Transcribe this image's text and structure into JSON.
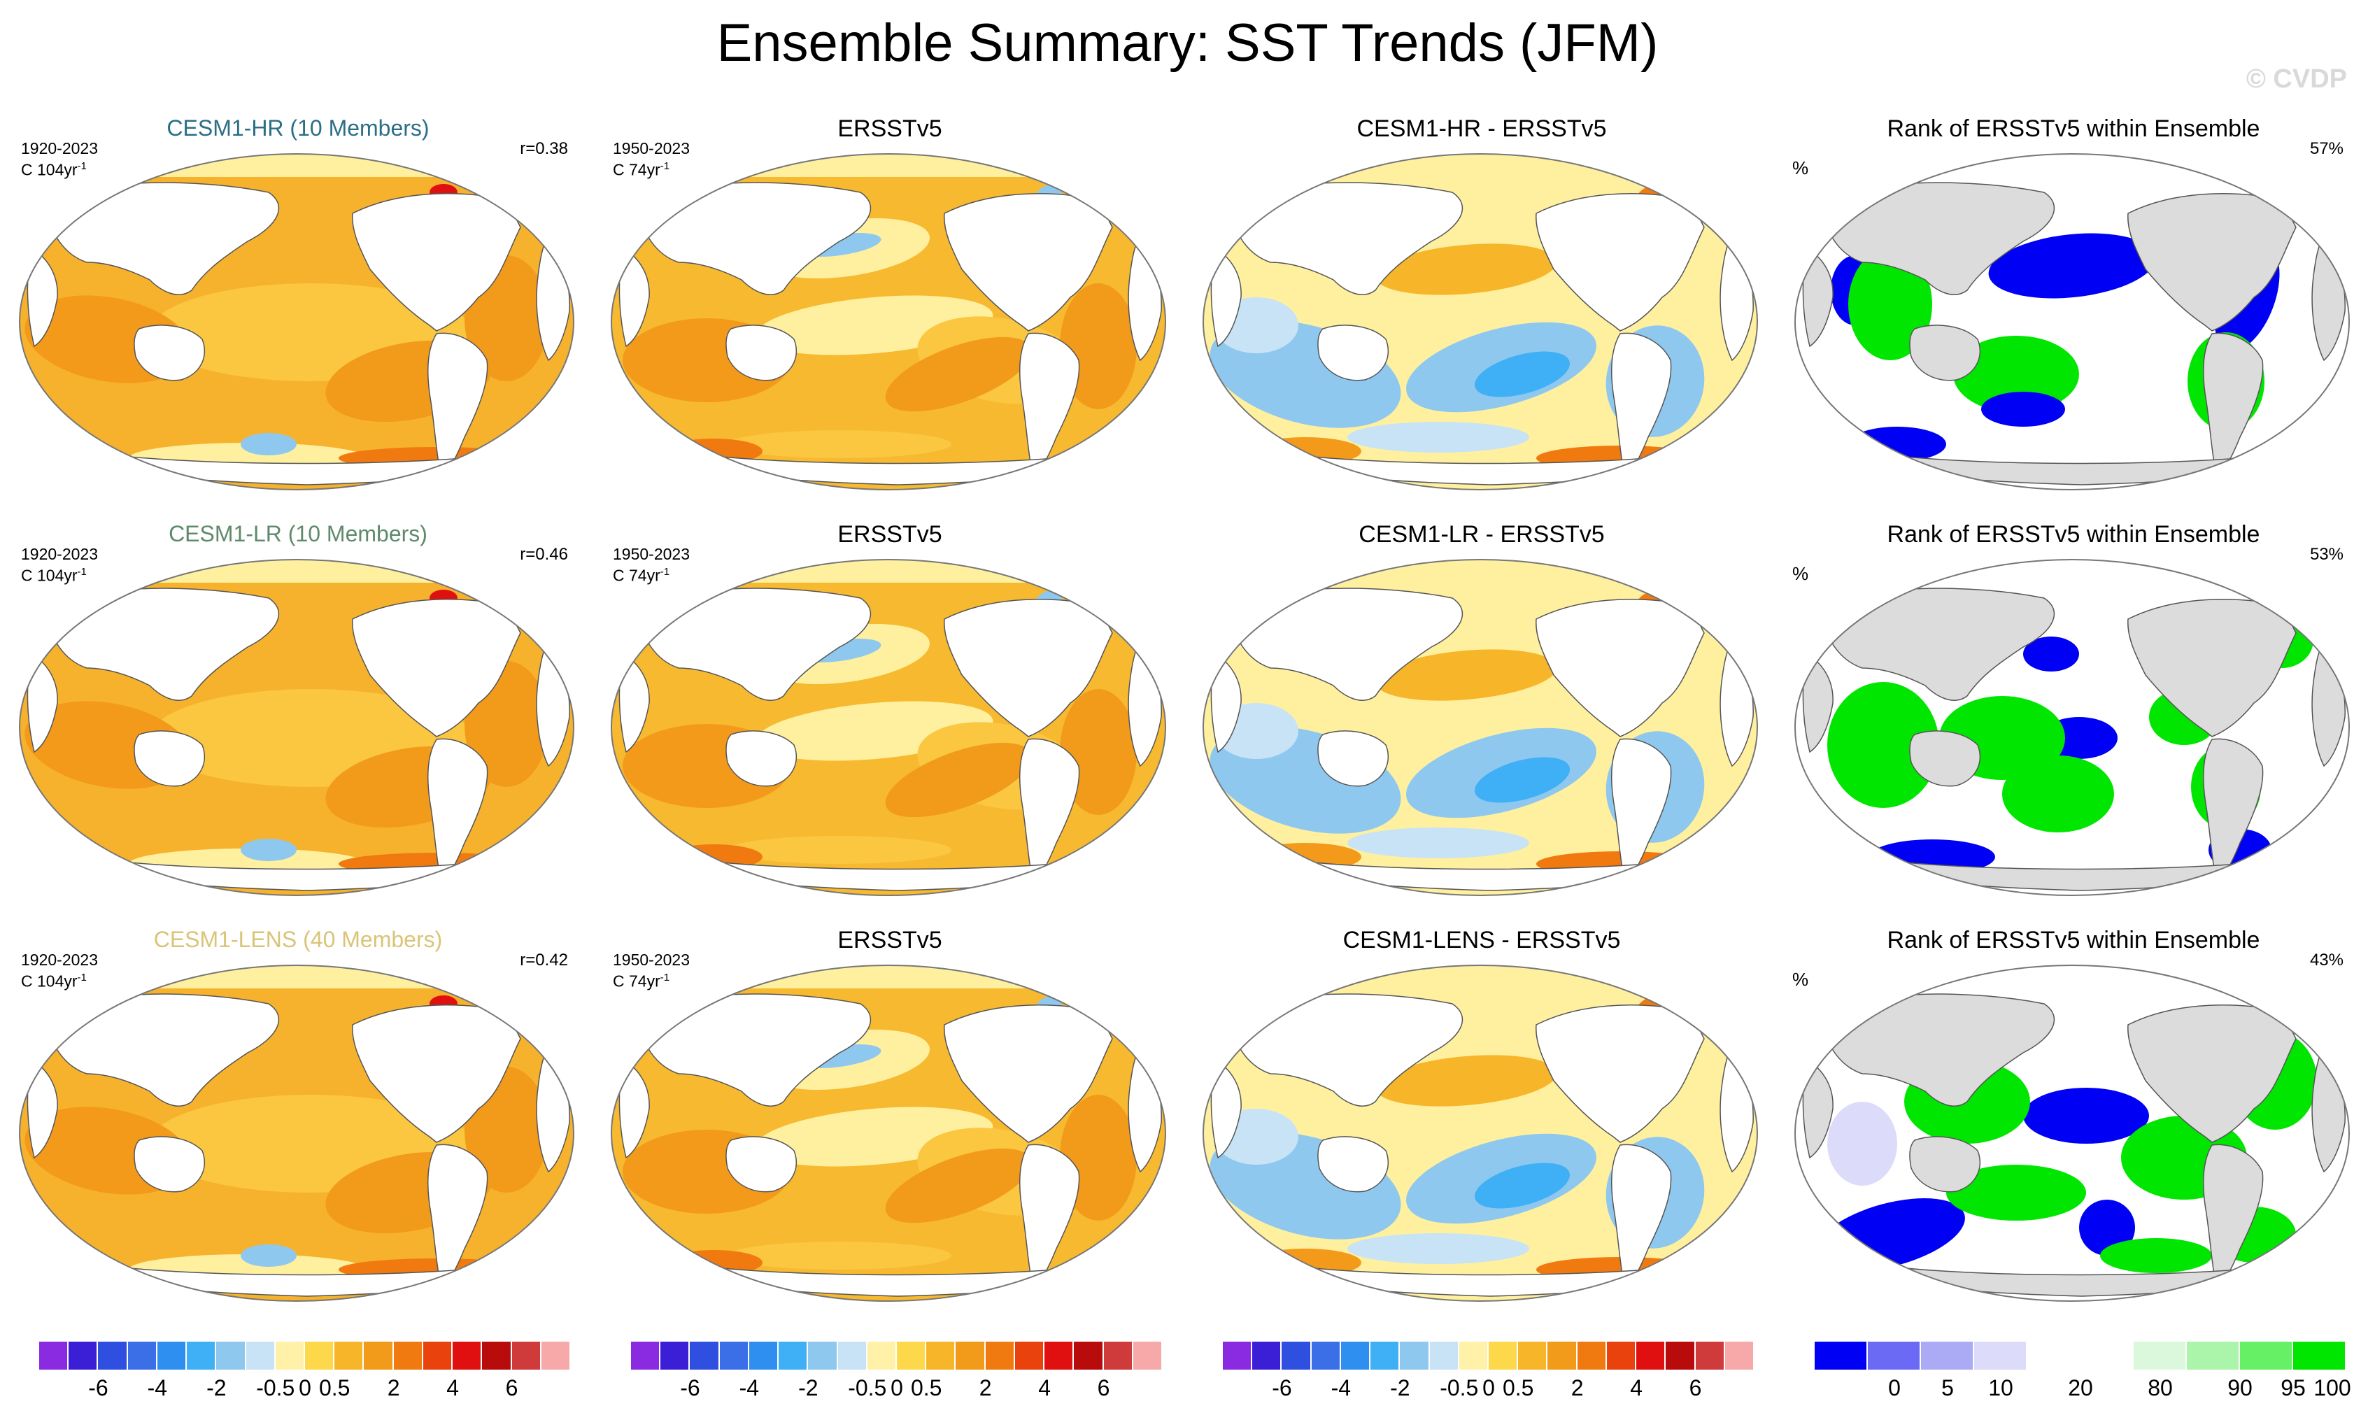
{
  "title": "Ensemble Summary: SST Trends (JFM)",
  "watermark": "© CVDP",
  "colors": {
    "land": "#ffffff",
    "ocean_warm": "#f5b32a",
    "rank_land": "#dcdcdc",
    "model_hr": "#2a6f86",
    "model_lr": "#5e8a6a",
    "model_lens": "#d9c477"
  },
  "rows": [
    {
      "model": {
        "title": "CESM1-HR (10 Members)",
        "period": "1920-2023",
        "units": "C 104yr",
        "sup": "-1",
        "corr": "r=0.38",
        "title_color": "#2a6f86"
      },
      "obs": {
        "title": "ERSSTv5",
        "period": "1950-2023",
        "units": "C 74yr",
        "sup": "-1"
      },
      "diff": {
        "title": "CESM1-HR - ERSSTv5"
      },
      "rank": {
        "title": "Rank of ERSSTv5 within Ensemble",
        "pct_label": "%",
        "value": "57%"
      }
    },
    {
      "model": {
        "title": "CESM1-LR (10 Members)",
        "period": "1920-2023",
        "units": "C 104yr",
        "sup": "-1",
        "corr": "r=0.46",
        "title_color": "#5e8a6a"
      },
      "obs": {
        "title": "ERSSTv5",
        "period": "1950-2023",
        "units": "C 74yr",
        "sup": "-1"
      },
      "diff": {
        "title": "CESM1-LR - ERSSTv5"
      },
      "rank": {
        "title": "Rank of ERSSTv5 within Ensemble",
        "pct_label": "%",
        "value": "53%"
      }
    },
    {
      "model": {
        "title": "CESM1-LENS (40 Members)",
        "period": "1920-2023",
        "units": "C 104yr",
        "sup": "-1",
        "corr": "r=0.42",
        "title_color": "#d9c477"
      },
      "obs": {
        "title": "ERSSTv5",
        "period": "1950-2023",
        "units": "C 74yr",
        "sup": "-1"
      },
      "diff": {
        "title": "CESM1-LENS - ERSSTv5"
      },
      "rank": {
        "title": "Rank of ERSSTv5 within Ensemble",
        "pct_label": "%",
        "value": "43%"
      }
    }
  ],
  "colorbars": {
    "sst": {
      "colors": [
        "#8a2be2",
        "#3a1fd6",
        "#2f4fe0",
        "#3a6fe8",
        "#2f8ff0",
        "#3fb0f5",
        "#8fc8ee",
        "#c7e3f5",
        "#fff2a8",
        "#fdd84a",
        "#f7b52a",
        "#f29a1a",
        "#f07a10",
        "#e9420c",
        "#e01010",
        "#b80c0c",
        "#cf3b3b",
        "#f7a8a8"
      ],
      "labels": [
        "-6",
        "-4",
        "-2",
        "-0.5",
        "0",
        "0.5",
        "2",
        "4",
        "6"
      ]
    },
    "rank": {
      "colors": [
        "#0000f5",
        "#6a6af5",
        "#aaaaf5",
        "#dcdcfa",
        "#ffffff",
        "#ffffff",
        "#dcf8dc",
        "#aaf5aa",
        "#66f066",
        "#00e600"
      ],
      "labels": [
        "0",
        "5",
        "10",
        "20",
        "80",
        "90",
        "95",
        "100"
      ]
    }
  }
}
